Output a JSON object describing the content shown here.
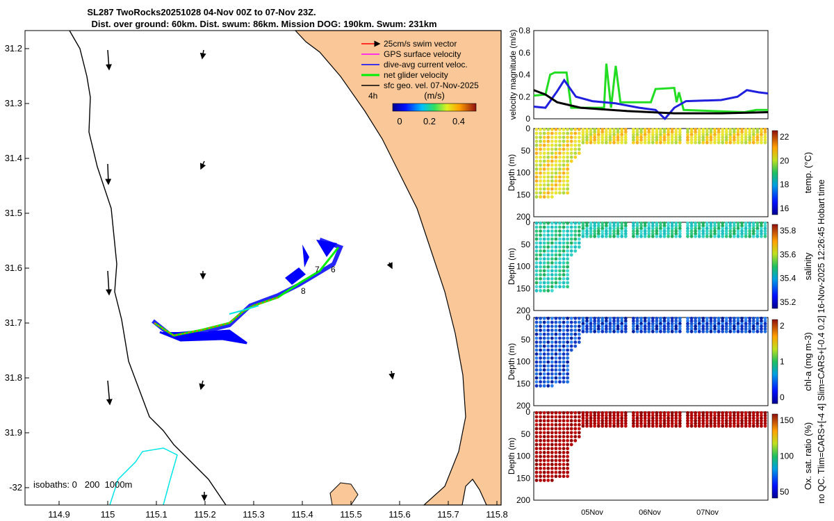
{
  "title": {
    "line1": "SL287 TwoRocks20251028 04-Nov 00Z to 07-Nov 23Z.",
    "line2": "Dist. over ground: 60km. Dist. swum: 86km. Mission DOG: 190km. Swum: 231km"
  },
  "map": {
    "y_ticks": [
      "31.2",
      "31.3",
      "31.4",
      "31.5",
      "31.6",
      "31.7",
      "31.8",
      "31.9",
      "-32"
    ],
    "x_ticks": [
      "114.9",
      "115",
      "115.1",
      "115.2",
      "115.3",
      "115.4",
      "115.5",
      "115.6",
      "115.7",
      "115.8"
    ],
    "legend": [
      {
        "label": "25cm/s swim vector",
        "color": "#ff0000"
      },
      {
        "label": "GPS surface velocity",
        "color": "#ff00ff"
      },
      {
        "label": "dive-avg current veloc.",
        "color": "#0000ff"
      },
      {
        "label": "net glider velocity",
        "color": "#00ee00"
      },
      {
        "label": "sfc geo. vel. 07-Nov-2025",
        "color": "#000000"
      }
    ],
    "colorbar": {
      "unit": "(m/s)",
      "period": "4h",
      "ticks": [
        "0",
        "0.2",
        "0.4"
      ]
    },
    "track_labels": [
      "7",
      "6",
      "8"
    ],
    "isobaths": "isobaths: 0   200  1000m",
    "colors": {
      "land": "#fac898",
      "coast": "#000000",
      "isobath": "#00e5e5"
    }
  },
  "chart_data": [
    {
      "type": "line",
      "title": "",
      "ylabel": "velocity magnitude (m/s)",
      "ylim": [
        0,
        0.8
      ],
      "yticks": [
        "0",
        "0.2",
        "0.4",
        "0.6",
        "0.8"
      ],
      "x_labels": [
        "05Nov",
        "06Nov",
        "07Nov"
      ],
      "series": [
        {
          "name": "net glider velocity",
          "color": "#22dd22",
          "points": [
            [
              0,
              0.21
            ],
            [
              0.05,
              0.22
            ],
            [
              0.07,
              0.4
            ],
            [
              0.09,
              0.42
            ],
            [
              0.14,
              0.42
            ],
            [
              0.16,
              0.1
            ],
            [
              0.3,
              0.1
            ],
            [
              0.31,
              0.5
            ],
            [
              0.33,
              0.1
            ],
            [
              0.35,
              0.48
            ],
            [
              0.37,
              0.15
            ],
            [
              0.5,
              0.15
            ],
            [
              0.52,
              0.27
            ],
            [
              0.6,
              0.28
            ],
            [
              0.61,
              0.15
            ],
            [
              0.62,
              0.24
            ],
            [
              0.64,
              0.08
            ],
            [
              0.9,
              0.06
            ],
            [
              0.95,
              0.08
            ],
            [
              1,
              0.08
            ]
          ]
        },
        {
          "name": "dive-avg current veloc.",
          "color": "#1f1fdd",
          "points": [
            [
              0,
              0.11
            ],
            [
              0.05,
              0.1
            ],
            [
              0.1,
              0.25
            ],
            [
              0.13,
              0.35
            ],
            [
              0.18,
              0.2
            ],
            [
              0.25,
              0.16
            ],
            [
              0.35,
              0.14
            ],
            [
              0.45,
              0.1
            ],
            [
              0.52,
              0.08
            ],
            [
              0.56,
              0.0
            ],
            [
              0.6,
              0.1
            ],
            [
              0.65,
              0.16
            ],
            [
              0.8,
              0.17
            ],
            [
              0.87,
              0.2
            ],
            [
              0.91,
              0.26
            ],
            [
              0.96,
              0.24
            ],
            [
              1,
              0.23
            ]
          ]
        },
        {
          "name": "sfc geo. vel.",
          "color": "#000000",
          "points": [
            [
              0,
              0.26
            ],
            [
              0.05,
              0.22
            ],
            [
              0.1,
              0.15
            ],
            [
              0.2,
              0.1
            ],
            [
              0.4,
              0.07
            ],
            [
              0.6,
              0.05
            ],
            [
              0.8,
              0.05
            ],
            [
              1,
              0.06
            ]
          ]
        }
      ]
    },
    {
      "type": "scatter",
      "ylabel": "Depth (m)",
      "yticks": [
        "0",
        "50",
        "100",
        "150",
        "200"
      ],
      "ylim": [
        0,
        200
      ],
      "colorbar_label": "temp. (°C)",
      "colorbar_ticks": [
        "22",
        "20",
        "18",
        "16"
      ]
    },
    {
      "type": "scatter",
      "ylabel": "Depth (m)",
      "yticks": [
        "0",
        "50",
        "100",
        "150",
        "200"
      ],
      "ylim": [
        0,
        200
      ],
      "colorbar_label": "salinity",
      "colorbar_ticks": [
        "35.8",
        "35.6",
        "35.4",
        "35.2"
      ]
    },
    {
      "type": "scatter",
      "ylabel": "Depth (m)",
      "yticks": [
        "0",
        "50",
        "100",
        "150",
        "200"
      ],
      "ylim": [
        0,
        200
      ],
      "colorbar_label": "chl-a (mg m-3)",
      "colorbar_ticks": [
        "2",
        "1",
        "0"
      ]
    },
    {
      "type": "scatter",
      "ylabel": "Depth (m)",
      "yticks": [
        "0",
        "50",
        "100",
        "150",
        "200"
      ],
      "ylim": [
        0,
        200
      ],
      "colorbar_label": "Ox. sat. ratio (%)",
      "colorbar_ticks": [
        "150",
        "100",
        "50"
      ]
    }
  ],
  "side_note": "no QC. Tlim=CARS+[-4 4] Slim=CARS+[-0.4 0.2] 16-Nov-2025 12:26:45 Hobart time"
}
